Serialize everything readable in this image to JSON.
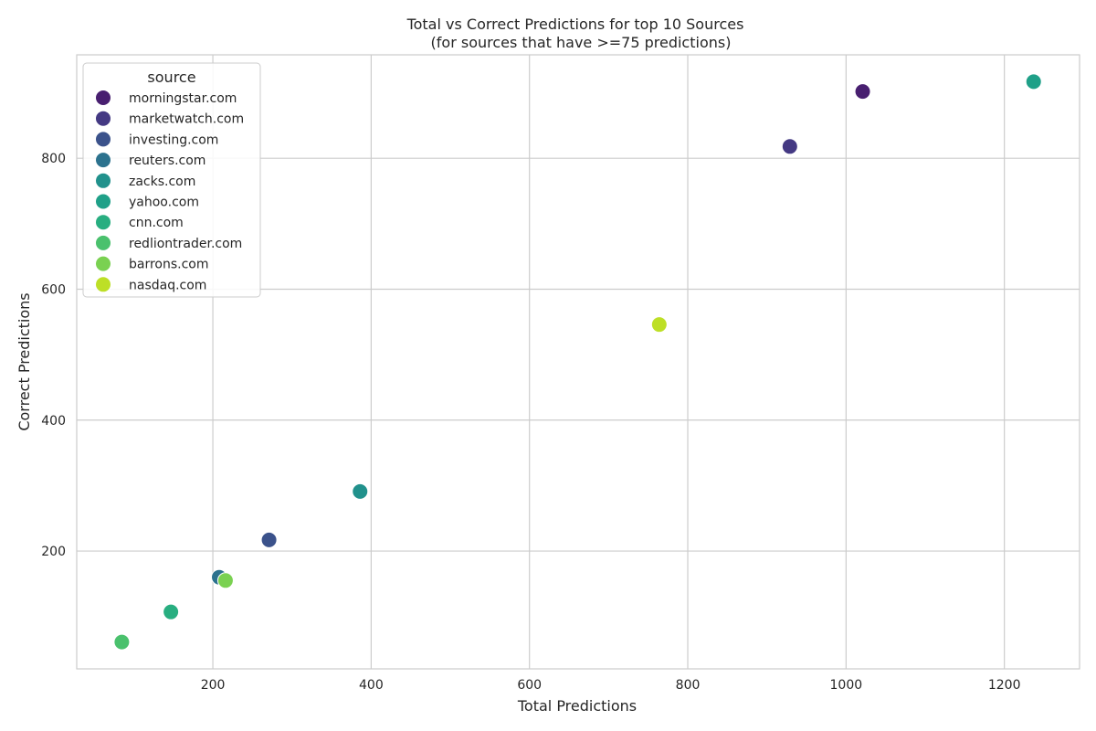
{
  "chart_data": {
    "type": "scatter",
    "title": "Total vs Correct Predictions for top 10 Sources",
    "subtitle": "(for sources that have >=75 predictions)",
    "xlabel": "Total Predictions",
    "ylabel": "Correct Predictions",
    "xlim": [
      28,
      1295
    ],
    "ylim": [
      20,
      958
    ],
    "xticks": [
      200,
      400,
      600,
      800,
      1000,
      1200
    ],
    "yticks": [
      200,
      400,
      600,
      800
    ],
    "grid": true,
    "legend": {
      "title": "source",
      "position": "top-left"
    },
    "series": [
      {
        "name": "morningstar.com",
        "color": "#481f70",
        "x": 1021,
        "y": 902
      },
      {
        "name": "marketwatch.com",
        "color": "#443983",
        "x": 929,
        "y": 818
      },
      {
        "name": "investing.com",
        "color": "#3b528b",
        "x": 271,
        "y": 217
      },
      {
        "name": "reuters.com",
        "color": "#2c728e",
        "x": 208,
        "y": 160
      },
      {
        "name": "zacks.com",
        "color": "#21918c",
        "x": 386,
        "y": 291
      },
      {
        "name": "yahoo.com",
        "color": "#1fa088",
        "x": 1237,
        "y": 917
      },
      {
        "name": "cnn.com",
        "color": "#28ae80",
        "x": 147,
        "y": 107
      },
      {
        "name": "redliontrader.com",
        "color": "#4ac16d",
        "x": 85,
        "y": 61
      },
      {
        "name": "barrons.com",
        "color": "#7ad151",
        "x": 216,
        "y": 155
      },
      {
        "name": "nasdaq.com",
        "color": "#bddf26",
        "x": 764,
        "y": 546
      }
    ]
  }
}
